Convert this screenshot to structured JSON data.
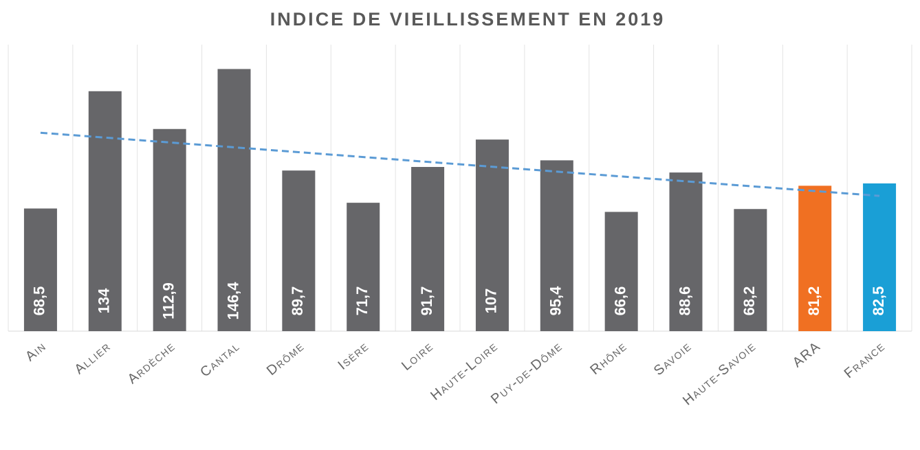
{
  "chart_data": {
    "type": "bar",
    "title": "INDICE DE VIEILLISSEMENT EN 2019",
    "categories": [
      "Ain",
      "Allier",
      "Ardèche",
      "Cantal",
      "Drôme",
      "Isère",
      "Loire",
      "Haute-Loire",
      "Puy-de-Dôme",
      "Rhône",
      "Savoie",
      "Haute-Savoie",
      "ARA",
      "France"
    ],
    "values": [
      68.5,
      134,
      112.9,
      146.4,
      89.7,
      71.7,
      91.7,
      107,
      95.4,
      66.6,
      88.6,
      68.2,
      81.2,
      82.5
    ],
    "value_labels": [
      "68,5",
      "134",
      "112,9",
      "146,4",
      "89,7",
      "71,7",
      "91,7",
      "107",
      "95,4",
      "66,6",
      "88,6",
      "68,2",
      "81,2",
      "82,5"
    ],
    "colors": [
      "#666669",
      "#666669",
      "#666669",
      "#666669",
      "#666669",
      "#666669",
      "#666669",
      "#666669",
      "#666669",
      "#666669",
      "#666669",
      "#666669",
      "#f07022",
      "#1a9fd6"
    ],
    "ylim": [
      0,
      160
    ],
    "trendline": true,
    "trendline_color": "#5b9bd5"
  }
}
